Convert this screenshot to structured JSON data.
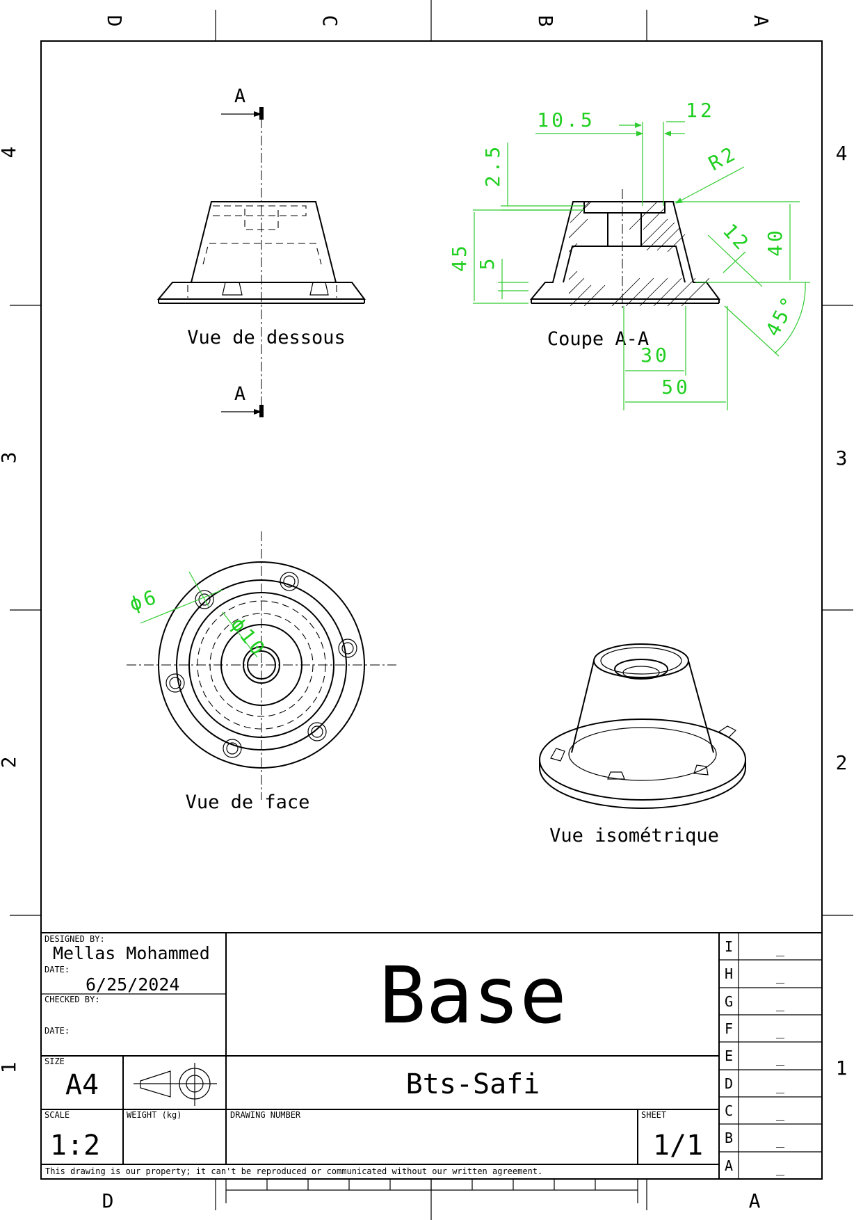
{
  "zones": {
    "columns": [
      "D",
      "C",
      "B",
      "A"
    ],
    "rows": [
      "4",
      "3",
      "2",
      "1"
    ]
  },
  "views": {
    "bottom": "Vue de dessous",
    "section": "Coupe A-A",
    "front": "Vue de face",
    "iso": "Vue isométrique",
    "section_mark": "A"
  },
  "dimensions": {
    "d10_5": "10.5",
    "d12": "12",
    "d2_5": "2.5",
    "r2": "R2",
    "d45": "45",
    "d5": "5",
    "d40": "40",
    "d12b": "12",
    "a45": "45°",
    "d30": "30",
    "d50": "50",
    "phi6": "ϕ6",
    "phi10": "ϕ10"
  },
  "title_block": {
    "designed_by_label": "DESIGNED BY:",
    "designed_by": "Mellas Mohammed",
    "date_label": "DATE:",
    "date": "6/25/2024",
    "checked_by_label": "CHECKED BY:",
    "date2_label": "DATE:",
    "size_label": "SIZE",
    "size": "A4",
    "scale_label": "SCALE",
    "scale": "1:2",
    "weight_label": "WEIGHT (kg)",
    "drawing_number_label": "DRAWING NUMBER",
    "sheet_label": "SHEET",
    "sheet": "1/1",
    "title": "Base",
    "company": "Bts-Safi",
    "notice": "This drawing is our property; it can't be reproduced or communicated without our written agreement."
  },
  "revisions": [
    {
      "letter": "I",
      "value": "_"
    },
    {
      "letter": "H",
      "value": "_"
    },
    {
      "letter": "G",
      "value": "_"
    },
    {
      "letter": "F",
      "value": "_"
    },
    {
      "letter": "E",
      "value": "_"
    },
    {
      "letter": "D",
      "value": "_"
    },
    {
      "letter": "C",
      "value": "_"
    },
    {
      "letter": "B",
      "value": "_"
    },
    {
      "letter": "A",
      "value": "_"
    }
  ]
}
